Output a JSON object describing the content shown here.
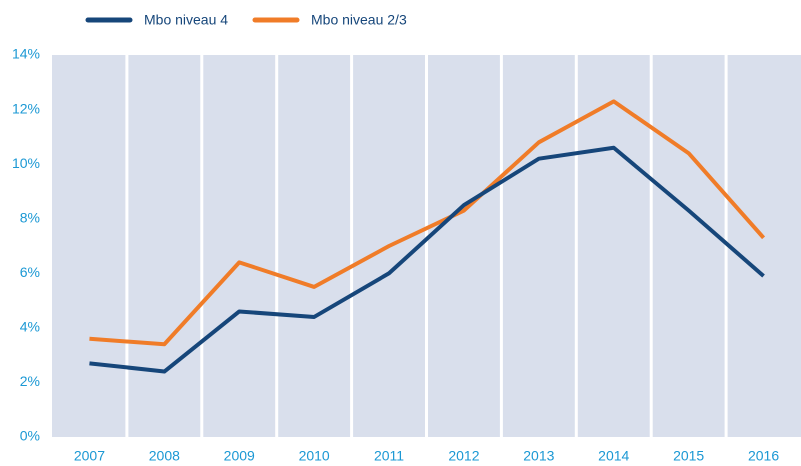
{
  "chart_data": {
    "type": "line",
    "categories": [
      "2007",
      "2008",
      "2009",
      "2010",
      "2011",
      "2012",
      "2013",
      "2014",
      "2015",
      "2016"
    ],
    "series": [
      {
        "name": "Mbo niveau 4",
        "color": "#16467a",
        "values": [
          2.7,
          2.4,
          4.6,
          4.4,
          6.0,
          8.5,
          10.2,
          10.6,
          8.3,
          5.9
        ]
      },
      {
        "name": "Mbo niveau 2/3",
        "color": "#f07c28",
        "values": [
          3.6,
          3.4,
          6.4,
          5.5,
          7.0,
          8.3,
          10.8,
          12.3,
          10.4,
          7.3
        ]
      }
    ],
    "ylim": [
      0,
      14
    ],
    "yticks": [
      {
        "value": 0,
        "label": "0%"
      },
      {
        "value": 2,
        "label": "2%"
      },
      {
        "value": 4,
        "label": "4%"
      },
      {
        "value": 6,
        "label": "6%"
      },
      {
        "value": 8,
        "label": "8%"
      },
      {
        "value": 10,
        "label": "10%"
      },
      {
        "value": 12,
        "label": "12%"
      },
      {
        "value": 14,
        "label": "14%"
      }
    ],
    "legend": "top-left"
  }
}
